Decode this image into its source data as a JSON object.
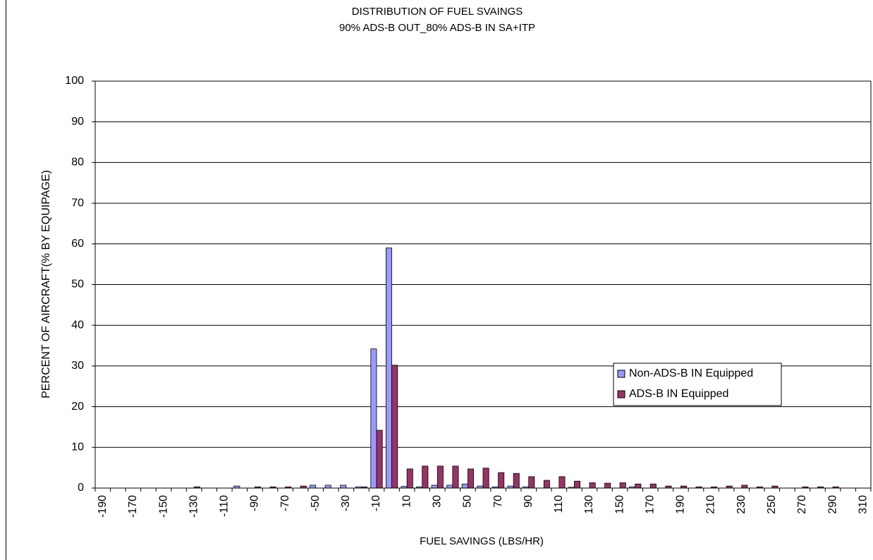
{
  "chart_data": {
    "type": "bar",
    "title": "DISTRIBUTION OF FUEL SVAINGS",
    "subtitle": "90% ADS-B OUT_80% ADS-B IN SA+ITP",
    "x_label": "FUEL SAVINGS (LBS/HR)",
    "y_label": "PERCENT OF AIRCRAFT(% BY EQUIPAGE)",
    "categories": [
      -190,
      null,
      -170,
      null,
      -150,
      null,
      -130,
      null,
      -110,
      null,
      -90,
      null,
      -70,
      null,
      -50,
      null,
      -30,
      null,
      -10,
      null,
      10,
      null,
      30,
      null,
      50,
      null,
      70,
      null,
      90,
      null,
      110,
      null,
      130,
      null,
      150,
      null,
      170,
      null,
      190,
      null,
      210,
      null,
      230,
      null,
      250,
      null,
      270,
      null,
      290,
      null,
      310
    ],
    "series": [
      {
        "name": "Non-ADS-B IN Equipped",
        "color": "#9999ff",
        "values": [
          0,
          0,
          0,
          0,
          0,
          0,
          0,
          0,
          0,
          0.5,
          0,
          0,
          0,
          0,
          0.7,
          0.7,
          0.7,
          0.3,
          34.2,
          59,
          0.4,
          0.3,
          0.7,
          0.7,
          1,
          0.5,
          0.3,
          0.5,
          0.3,
          0,
          0,
          0.2,
          0,
          0,
          0,
          0.3,
          0,
          0,
          0,
          0,
          0,
          0,
          0,
          0,
          0,
          0,
          0,
          0,
          0,
          0,
          0
        ]
      },
      {
        "name": "ADS-B IN Equipped",
        "color": "#993366",
        "values": [
          0,
          0,
          0,
          0,
          0,
          0,
          0.3,
          0,
          0,
          0,
          0.3,
          0.3,
          0.3,
          0.5,
          0,
          0,
          0,
          0.3,
          14.2,
          30.2,
          4.7,
          5.4,
          5.4,
          5.4,
          4.7,
          4.9,
          3.8,
          3.6,
          2.8,
          1.9,
          2.8,
          1.7,
          1.3,
          1.2,
          1.3,
          1.0,
          1.0,
          0.5,
          0.5,
          0.3,
          0.3,
          0.5,
          0.7,
          0.3,
          0.5,
          0,
          0.3,
          0.3,
          0.3,
          0,
          0
        ]
      }
    ],
    "ylim": [
      0,
      100
    ],
    "yticks": [
      0,
      10,
      20,
      30,
      40,
      50,
      60,
      70,
      80,
      90,
      100
    ],
    "grid": true,
    "legend": "center-right"
  }
}
